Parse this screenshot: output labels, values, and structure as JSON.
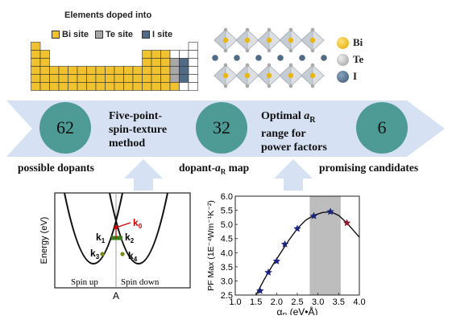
{
  "periodic_table": {
    "title": "Elements doped into",
    "legend": [
      {
        "label": "Bi site",
        "color": "#f0c22f"
      },
      {
        "label": "Te site",
        "color": "#a8a8a8"
      },
      {
        "label": "I site",
        "color": "#4f6b86"
      }
    ]
  },
  "crystal_legend": [
    {
      "label": "Bi",
      "color": "#f0c22f"
    },
    {
      "label": "Te",
      "color": "#b5b5b5"
    },
    {
      "label": "I",
      "color": "#4f6b86"
    }
  ],
  "workflow": {
    "circles": [
      "62",
      "32",
      "6"
    ],
    "step1_lines": [
      "Five-point-",
      "spin-texture",
      "method"
    ],
    "step2_line1_prefix": "Optimal ",
    "step2_line1_var": "a",
    "step2_line1_sub": "R",
    "step2_lines": [
      "range for",
      "power factors"
    ],
    "bottom_left": "possible dopants",
    "bottom_mid_prefix": "dopant-",
    "bottom_mid_var": "a",
    "bottom_mid_sub": "R",
    "bottom_mid_suffix": " map",
    "bottom_right": "promising candidates"
  },
  "band_diagram": {
    "ylabel": "Energy (eV)",
    "xlabel": "A",
    "k_labels": [
      "k",
      "k",
      "k",
      "k",
      "k"
    ],
    "k_subs": [
      "1",
      "2",
      "3",
      "4",
      "0"
    ],
    "spin_up": "Spin up",
    "spin_down": "Spin down"
  },
  "chart_data": {
    "type": "scatter",
    "xlabel_main": "α",
    "xlabel_sub": "R",
    "xlabel_unit": " (eV•Å)",
    "ylabel": "PF Max (1E⁻⁴Wm⁻¹K⁻²)",
    "xlim": [
      1.0,
      4.0
    ],
    "ylim": [
      2.5,
      6.0
    ],
    "xticks": [
      "1.0",
      "1.5",
      "2.0",
      "2.5",
      "3.0",
      "3.5",
      "4.0"
    ],
    "yticks": [
      "2.5",
      "3.0",
      "3.5",
      "4.0",
      "4.5",
      "5.0",
      "5.5",
      "6.0"
    ],
    "shaded_range": [
      2.8,
      3.55
    ],
    "points": [
      {
        "x": 1.6,
        "y": 2.65
      },
      {
        "x": 1.8,
        "y": 3.3
      },
      {
        "x": 2.0,
        "y": 3.7
      },
      {
        "x": 2.2,
        "y": 4.3
      },
      {
        "x": 2.5,
        "y": 4.85
      },
      {
        "x": 2.9,
        "y": 5.3
      },
      {
        "x": 3.3,
        "y": 5.45
      },
      {
        "x": 3.7,
        "y": 5.05
      }
    ],
    "curve": [
      {
        "x": 1.5,
        "y": 2.5
      },
      {
        "x": 1.7,
        "y": 3.05
      },
      {
        "x": 1.9,
        "y": 3.55
      },
      {
        "x": 2.1,
        "y": 4.0
      },
      {
        "x": 2.3,
        "y": 4.45
      },
      {
        "x": 2.5,
        "y": 4.85
      },
      {
        "x": 2.7,
        "y": 5.15
      },
      {
        "x": 2.9,
        "y": 5.32
      },
      {
        "x": 3.1,
        "y": 5.42
      },
      {
        "x": 3.3,
        "y": 5.45
      },
      {
        "x": 3.5,
        "y": 5.32
      },
      {
        "x": 3.7,
        "y": 5.05
      },
      {
        "x": 3.85,
        "y": 4.8
      },
      {
        "x": 4.0,
        "y": 4.55
      }
    ],
    "point_color": "#1a237e",
    "last_point_color": "#8b1a2b"
  }
}
